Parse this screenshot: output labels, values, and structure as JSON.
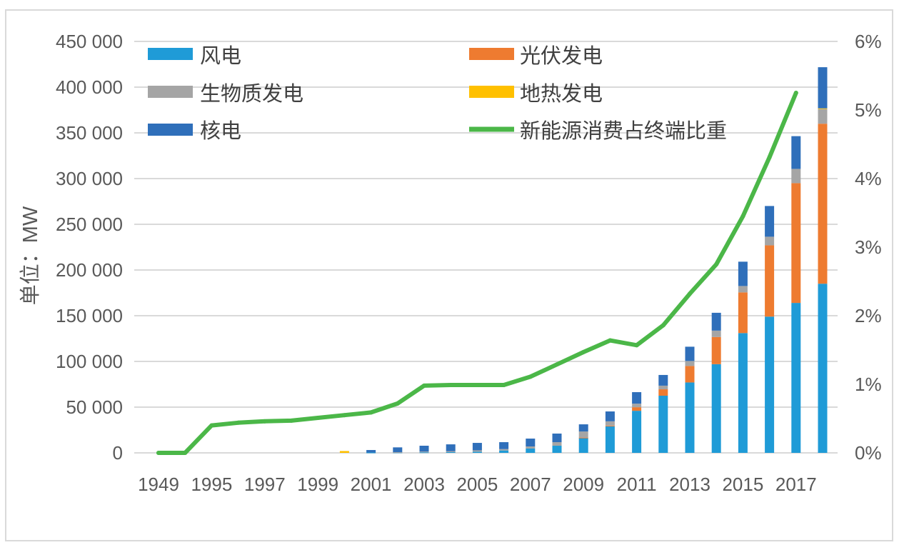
{
  "chart_data": {
    "type": "bar",
    "stacked": true,
    "categories": [
      "1949",
      "",
      "1995",
      "",
      "1997",
      "",
      "1999",
      "",
      "2001",
      "",
      "2003",
      "",
      "2005",
      "",
      "2007",
      "",
      "2009",
      "",
      "2011",
      "",
      "2013",
      "",
      "2015",
      "",
      "2017",
      ""
    ],
    "series": [
      {
        "name": "风电",
        "type": "bar",
        "axis": "left",
        "color": "#1f9bd7",
        "values": [
          0,
          0,
          0,
          0,
          0,
          0,
          0,
          0,
          400,
          500,
          600,
          800,
          1300,
          2600,
          4700,
          7800,
          16400,
          29000,
          46000,
          62500,
          77000,
          97000,
          131000,
          149000,
          164000,
          185000
        ]
      },
      {
        "name": "光伏发电",
        "type": "bar",
        "axis": "left",
        "color": "#ee7b30",
        "values": [
          0,
          0,
          0,
          0,
          0,
          0,
          0,
          0,
          0,
          0,
          0,
          0,
          0,
          0,
          0,
          0,
          300,
          800,
          3900,
          7000,
          18000,
          29700,
          44500,
          78000,
          131000,
          175000
        ]
      },
      {
        "name": "生物质发电",
        "type": "bar",
        "axis": "left",
        "color": "#a5a5a5",
        "values": [
          0,
          0,
          0,
          0,
          0,
          0,
          0,
          0,
          0,
          300,
          800,
          1000,
          1500,
          1500,
          2300,
          3900,
          6700,
          4700,
          3900,
          4000,
          5500,
          7000,
          7000,
          9400,
          15600,
          16000
        ]
      },
      {
        "name": "地热发电",
        "type": "bar",
        "axis": "left",
        "color": "#ffc000",
        "values": [
          0,
          0,
          0,
          0,
          0,
          0,
          0,
          2000,
          0,
          0,
          0,
          0,
          0,
          0,
          0,
          0,
          0,
          0,
          0,
          0,
          0,
          0,
          0,
          0,
          0,
          800
        ]
      },
      {
        "name": "核电",
        "type": "bar",
        "axis": "left",
        "color": "#2f6fba",
        "values": [
          0,
          0,
          0,
          0,
          0,
          0,
          0,
          0,
          2700,
          5200,
          6400,
          7500,
          8100,
          7600,
          8600,
          9400,
          7800,
          10800,
          12600,
          11700,
          15600,
          19500,
          26600,
          33600,
          35800,
          45000
        ]
      },
      {
        "name": "新能源消费占终端比重",
        "type": "line",
        "axis": "right",
        "color": "#4bb748",
        "values": [
          0,
          0,
          0.4,
          0.44,
          0.46,
          0.47,
          0.51,
          0.55,
          0.59,
          0.72,
          0.98,
          0.99,
          0.99,
          0.99,
          1.11,
          1.29,
          1.47,
          1.64,
          1.57,
          1.86,
          2.32,
          2.75,
          3.45,
          4.31,
          5.25,
          null
        ]
      }
    ],
    "ylabel": "单位：MW",
    "ylim": [
      0,
      450000
    ],
    "yticks": [
      "0",
      "50 000",
      "100 000",
      "150 000",
      "200 000",
      "250 000",
      "300 000",
      "350 000",
      "400 000",
      "450 000"
    ],
    "y2lim": [
      0,
      6
    ],
    "y2ticks": [
      "0%",
      "1%",
      "2%",
      "3%",
      "4%",
      "5%",
      "6%"
    ],
    "grid": true,
    "legend": "top"
  }
}
